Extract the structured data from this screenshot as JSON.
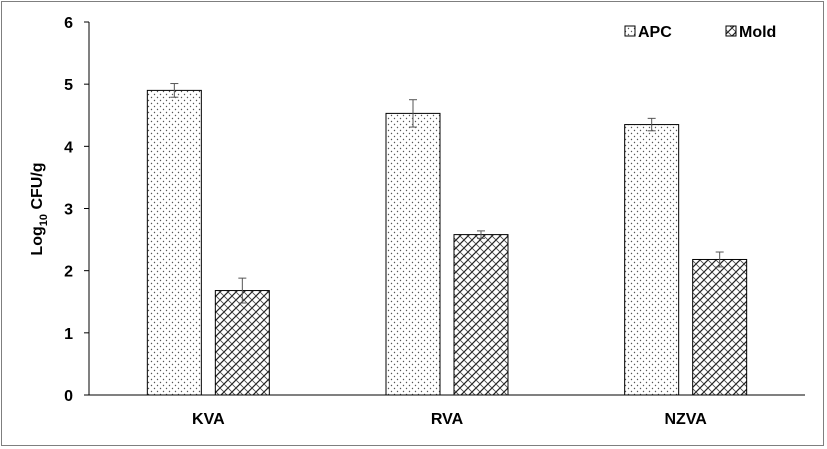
{
  "chart_data": {
    "type": "bar",
    "ylabel_main": "Log",
    "ylabel_sub": "10",
    "ylabel_rest": " CFU/g",
    "ylim": [
      0,
      6
    ],
    "yticks": [
      "0",
      "1",
      "2",
      "3",
      "4",
      "5",
      "6"
    ],
    "categories": [
      "KVA",
      "RVA",
      "NZVA"
    ],
    "series": [
      {
        "name": "APC",
        "values": [
          4.9,
          4.53,
          4.35
        ],
        "errors": [
          0.11,
          0.22,
          0.1
        ],
        "pattern": "dots"
      },
      {
        "name": "Mold",
        "values": [
          1.68,
          2.58,
          2.18
        ],
        "errors": [
          0.2,
          0.06,
          0.12
        ],
        "pattern": "hatch"
      }
    ],
    "legend_position": "top-right",
    "grid": false
  }
}
